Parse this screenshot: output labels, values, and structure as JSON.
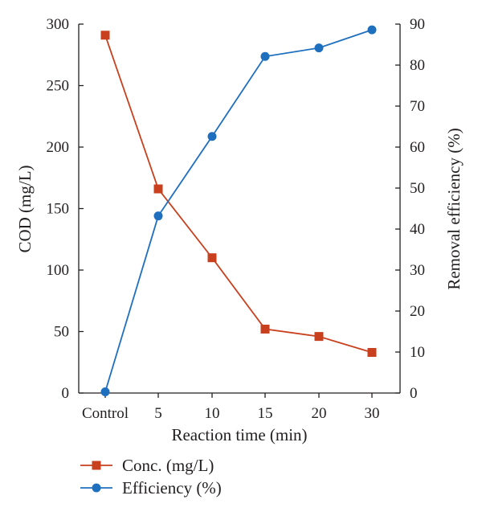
{
  "chart_data": {
    "type": "line",
    "categories": [
      "Control",
      "5",
      "10",
      "15",
      "20",
      "30"
    ],
    "xlabel": "Reaction time (min)",
    "ylabel": "COD (mg/L)",
    "y2label": "Removal efficiency (%)",
    "ylim": [
      0,
      300
    ],
    "yticks": [
      "0",
      "50",
      "100",
      "150",
      "200",
      "250",
      "300"
    ],
    "y2lim": [
      0,
      90
    ],
    "y2ticks": [
      "0",
      "10",
      "20",
      "30",
      "40",
      "50",
      "60",
      "70",
      "80",
      "90"
    ],
    "grid": false,
    "legend_position": "bottom-left",
    "series": [
      {
        "name": "Conc. (mg/L)",
        "axis": "left",
        "marker": "square",
        "color": "#c8401e",
        "values": [
          291,
          166,
          110,
          52,
          46,
          33
        ]
      },
      {
        "name": "Efficiency (%)",
        "axis": "right",
        "marker": "circle",
        "color": "#1f6fbf",
        "values": [
          0.3,
          43.2,
          62.6,
          82.1,
          84.2,
          88.6
        ]
      }
    ]
  }
}
